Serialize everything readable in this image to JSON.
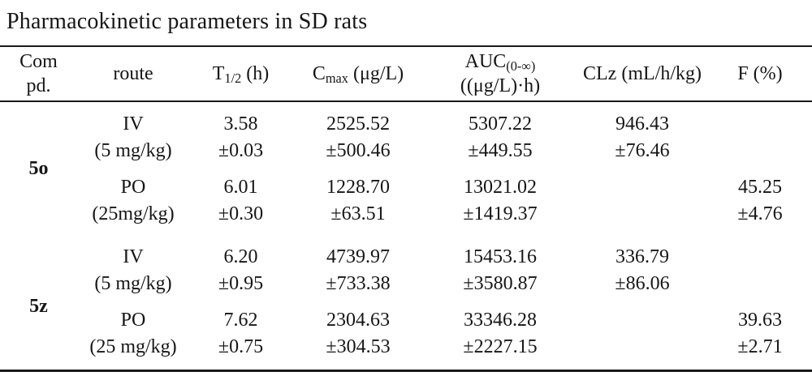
{
  "title": "Pharmacokinetic parameters in SD rats",
  "header": {
    "compd": {
      "line1": "Com",
      "line2": "pd."
    },
    "route": "route",
    "t12": {
      "base": "T",
      "sub": "1/2",
      "unit": " (h)"
    },
    "cmax": {
      "base": "C",
      "sub": "max",
      "unit": " (μg/L)"
    },
    "auc": {
      "base": "AUC",
      "sub": "(0-∞)",
      "line2": "((μg/L)·h)"
    },
    "clz": "CLz (mL/h/kg)",
    "f": "F (%)"
  },
  "groups": [
    {
      "compound": "5o",
      "rows": [
        {
          "route": "IV",
          "dose": "(5 mg/kg)",
          "t12": "3.58",
          "t12_sd": "±0.03",
          "cmax": "2525.52",
          "cmax_sd": "±500.46",
          "auc": "5307.22",
          "auc_sd": "±449.55",
          "clz": "946.43",
          "clz_sd": "±76.46",
          "f": "",
          "f_sd": ""
        },
        {
          "route": "PO",
          "dose": "(25mg/kg)",
          "t12": "6.01",
          "t12_sd": "±0.30",
          "cmax": "1228.70",
          "cmax_sd": "±63.51",
          "auc": "13021.02",
          "auc_sd": "±1419.37",
          "clz": "",
          "clz_sd": "",
          "f": "45.25",
          "f_sd": "±4.76"
        }
      ]
    },
    {
      "compound": "5z",
      "rows": [
        {
          "route": "IV",
          "dose": "(5 mg/kg)",
          "t12": "6.20",
          "t12_sd": "±0.95",
          "cmax": "4739.97",
          "cmax_sd": "±733.38",
          "auc": "15453.16",
          "auc_sd": "±3580.87",
          "clz": "336.79",
          "clz_sd": "±86.06",
          "f": "",
          "f_sd": ""
        },
        {
          "route": "PO",
          "dose": "(25 mg/kg)",
          "t12": "7.62",
          "t12_sd": "±0.75",
          "cmax": "2304.63",
          "cmax_sd": "±304.53",
          "auc": "33346.28",
          "auc_sd": "±2227.15",
          "clz": "",
          "clz_sd": "",
          "f": "39.63",
          "f_sd": "±2.71"
        }
      ]
    }
  ],
  "colors": {
    "text": "#161616",
    "rule": "#1a1a1a",
    "background": "#ffffff"
  }
}
